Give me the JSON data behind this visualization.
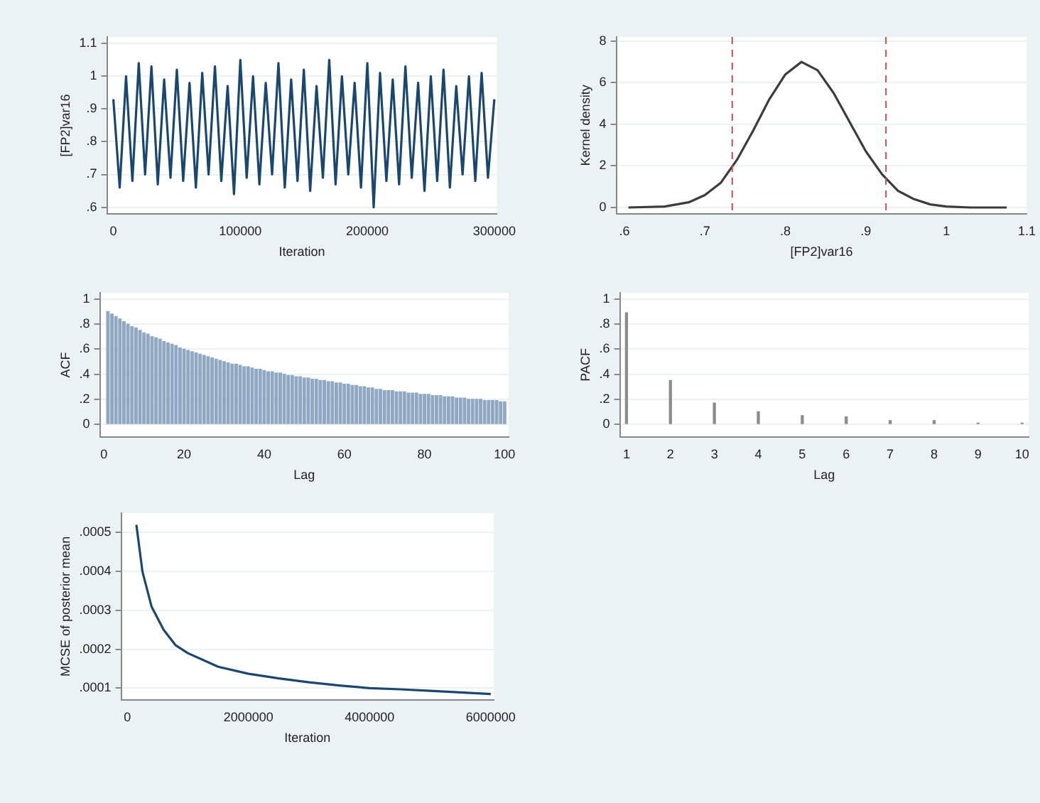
{
  "chart_data": [
    {
      "type": "line",
      "ylabel": "[FP2]var16",
      "xlabel": "Iteration",
      "grid": "y",
      "marker": "none",
      "line_style": "solid",
      "x": [
        0,
        5000,
        10000,
        15000,
        20000,
        25000,
        30000,
        35000,
        40000,
        45000,
        50000,
        55000,
        60000,
        65000,
        70000,
        75000,
        80000,
        85000,
        90000,
        95000,
        100000,
        105000,
        110000,
        115000,
        120000,
        125000,
        130000,
        135000,
        140000,
        145000,
        150000,
        155000,
        160000,
        165000,
        170000,
        175000,
        180000,
        185000,
        190000,
        195000,
        200000,
        205000,
        210000,
        215000,
        220000,
        225000,
        230000,
        235000,
        240000,
        245000,
        250000,
        255000,
        260000,
        265000,
        270000,
        275000,
        280000,
        285000,
        290000,
        295000,
        300000
      ],
      "series": [
        {
          "color": "#1a476f",
          "values": [
            0.93,
            0.66,
            1.0,
            0.68,
            1.04,
            0.7,
            1.03,
            0.67,
            0.99,
            0.69,
            1.02,
            0.68,
            0.98,
            0.66,
            1.01,
            0.7,
            1.03,
            0.68,
            0.97,
            0.64,
            1.05,
            0.69,
            1.0,
            0.67,
            0.98,
            0.7,
            1.04,
            0.66,
            0.99,
            0.68,
            1.02,
            0.65,
            0.97,
            0.69,
            1.05,
            0.67,
            1.0,
            0.7,
            0.98,
            0.66,
            1.04,
            0.6,
            1.01,
            0.68,
            0.99,
            0.67,
            1.03,
            0.69,
            0.98,
            0.65,
            1.0,
            0.68,
            1.02,
            0.66,
            0.97,
            0.7,
            1.0,
            0.68,
            1.01,
            0.69,
            0.93
          ]
        }
      ],
      "xlim": [
        -5000,
        302000
      ],
      "xticks": [
        0,
        100000,
        200000,
        300000
      ],
      "ylim": [
        0.58,
        1.12
      ],
      "yticks": [
        {
          "value": 0.6,
          "label": ".6"
        },
        {
          "value": 0.7,
          "label": ".7"
        },
        {
          "value": 0.8,
          "label": ".8"
        },
        {
          "value": 0.9,
          "label": ".9"
        },
        1,
        1.1
      ]
    },
    {
      "type": "line",
      "ylabel": "Kernel density",
      "xlabel": "[FP2]var16",
      "grid": "y",
      "marker": "none",
      "line_style": "solid",
      "x": [
        0.605,
        0.65,
        0.68,
        0.7,
        0.72,
        0.74,
        0.76,
        0.78,
        0.8,
        0.82,
        0.84,
        0.86,
        0.88,
        0.9,
        0.92,
        0.94,
        0.96,
        0.98,
        1.0,
        1.03,
        1.075
      ],
      "series": [
        {
          "color": "#3c3c3c",
          "values": [
            0,
            0.05,
            0.25,
            0.6,
            1.2,
            2.3,
            3.7,
            5.2,
            6.4,
            7.0,
            6.6,
            5.5,
            4.1,
            2.7,
            1.6,
            0.8,
            0.4,
            0.15,
            0.05,
            0,
            0
          ]
        }
      ],
      "ref_lines": [
        {
          "axis": "x",
          "value": 0.734,
          "color": "#c0504d",
          "line_style": "dashed"
        },
        {
          "axis": "x",
          "value": 0.925,
          "color": "#c0504d",
          "line_style": "dashed"
        }
      ],
      "xlim": [
        0.59,
        1.1
      ],
      "xticks": [
        {
          "value": 0.6,
          "label": ".6"
        },
        {
          "value": 0.7,
          "label": ".7"
        },
        {
          "value": 0.8,
          "label": ".8"
        },
        {
          "value": 0.9,
          "label": ".9"
        },
        1,
        1.1
      ],
      "ylim": [
        -0.3,
        8.2
      ],
      "yticks": [
        0,
        2,
        4,
        6,
        8
      ]
    },
    {
      "type": "bar",
      "ylabel": "ACF",
      "xlabel": "Lag",
      "grid": "y",
      "x": [
        1,
        2,
        3,
        4,
        5,
        6,
        7,
        8,
        9,
        10,
        11,
        12,
        13,
        14,
        15,
        16,
        17,
        18,
        19,
        20,
        21,
        22,
        23,
        24,
        25,
        26,
        27,
        28,
        29,
        30,
        31,
        32,
        33,
        34,
        35,
        36,
        37,
        38,
        39,
        40,
        41,
        42,
        43,
        44,
        45,
        46,
        47,
        48,
        49,
        50,
        51,
        52,
        53,
        54,
        55,
        56,
        57,
        58,
        59,
        60,
        61,
        62,
        63,
        64,
        65,
        66,
        67,
        68,
        69,
        70,
        71,
        72,
        73,
        74,
        75,
        76,
        77,
        78,
        79,
        80,
        81,
        82,
        83,
        84,
        85,
        86,
        87,
        88,
        89,
        90,
        91,
        92,
        93,
        94,
        95,
        96,
        97,
        98,
        99,
        100
      ],
      "series": [
        {
          "color": "#90a8c3",
          "values": [
            0.9,
            0.88,
            0.86,
            0.84,
            0.82,
            0.8,
            0.78,
            0.77,
            0.75,
            0.73,
            0.72,
            0.7,
            0.69,
            0.68,
            0.66,
            0.65,
            0.64,
            0.63,
            0.61,
            0.6,
            0.59,
            0.58,
            0.57,
            0.56,
            0.55,
            0.54,
            0.53,
            0.52,
            0.51,
            0.5,
            0.49,
            0.48,
            0.48,
            0.47,
            0.46,
            0.46,
            0.45,
            0.44,
            0.44,
            0.43,
            0.42,
            0.42,
            0.41,
            0.41,
            0.4,
            0.39,
            0.39,
            0.38,
            0.38,
            0.37,
            0.37,
            0.36,
            0.36,
            0.35,
            0.35,
            0.34,
            0.34,
            0.33,
            0.33,
            0.32,
            0.32,
            0.31,
            0.31,
            0.3,
            0.3,
            0.29,
            0.29,
            0.28,
            0.28,
            0.27,
            0.27,
            0.27,
            0.26,
            0.26,
            0.26,
            0.25,
            0.25,
            0.25,
            0.24,
            0.24,
            0.24,
            0.23,
            0.23,
            0.23,
            0.22,
            0.22,
            0.22,
            0.21,
            0.21,
            0.21,
            0.2,
            0.2,
            0.2,
            0.2,
            0.19,
            0.19,
            0.19,
            0.19,
            0.18,
            0.18
          ]
        }
      ],
      "xlim": [
        -1,
        101
      ],
      "xticks": [
        0,
        20,
        40,
        60,
        80,
        100
      ],
      "ylim": [
        -0.1,
        1.05
      ],
      "yticks": [
        0,
        {
          "value": 0.2,
          "label": ".2"
        },
        {
          "value": 0.4,
          "label": ".4"
        },
        {
          "value": 0.6,
          "label": ".6"
        },
        {
          "value": 0.8,
          "label": ".8"
        },
        1
      ]
    },
    {
      "type": "bar",
      "ylabel": "PACF",
      "xlabel": "Lag",
      "grid": "y",
      "x": [
        1,
        2,
        3,
        4,
        5,
        6,
        7,
        8,
        9,
        10
      ],
      "series": [
        {
          "color": "#8c8c8c",
          "values": [
            0.89,
            0.35,
            0.17,
            0.1,
            0.07,
            0.06,
            0.03,
            0.03,
            0.01,
            0.01
          ]
        }
      ],
      "xlim": [
        0.85,
        10.15
      ],
      "xticks": [
        1,
        2,
        3,
        4,
        5,
        6,
        7,
        8,
        9,
        10
      ],
      "ylim": [
        -0.1,
        1.05
      ],
      "yticks": [
        0,
        {
          "value": 0.2,
          "label": ".2"
        },
        {
          "value": 0.4,
          "label": ".4"
        },
        {
          "value": 0.6,
          "label": ".6"
        },
        {
          "value": 0.8,
          "label": ".8"
        },
        1
      ]
    },
    {
      "type": "line",
      "ylabel": "MCSE of posterior mean",
      "xlabel": "Iteration",
      "grid": "y",
      "marker": "none",
      "line_style": "solid",
      "x": [
        150000,
        250000,
        400000,
        600000,
        800000,
        1000000,
        1500000,
        2000000,
        2500000,
        3000000,
        3500000,
        4000000,
        4500000,
        5000000,
        5500000,
        6000000
      ],
      "series": [
        {
          "color": "#1a476f",
          "values": [
            0.00052,
            0.0004,
            0.00031,
            0.00025,
            0.00021,
            0.00019,
            0.000155,
            0.000137,
            0.000125,
            0.000115,
            0.000107,
            0.0001,
            9.7e-05,
            9.3e-05,
            8.9e-05,
            8.5e-05
          ]
        }
      ],
      "xlim": [
        -100000,
        6050000
      ],
      "xticks": [
        0,
        2000000,
        4000000,
        6000000
      ],
      "ylim": [
        7e-05,
        0.00055
      ],
      "yticks": [
        {
          "value": 0.0001,
          "label": ".0001"
        },
        {
          "value": 0.0002,
          "label": ".0002"
        },
        {
          "value": 0.0003,
          "label": ".0003"
        },
        {
          "value": 0.0004,
          "label": ".0004"
        },
        {
          "value": 0.0005,
          "label": ".0005"
        }
      ]
    }
  ]
}
